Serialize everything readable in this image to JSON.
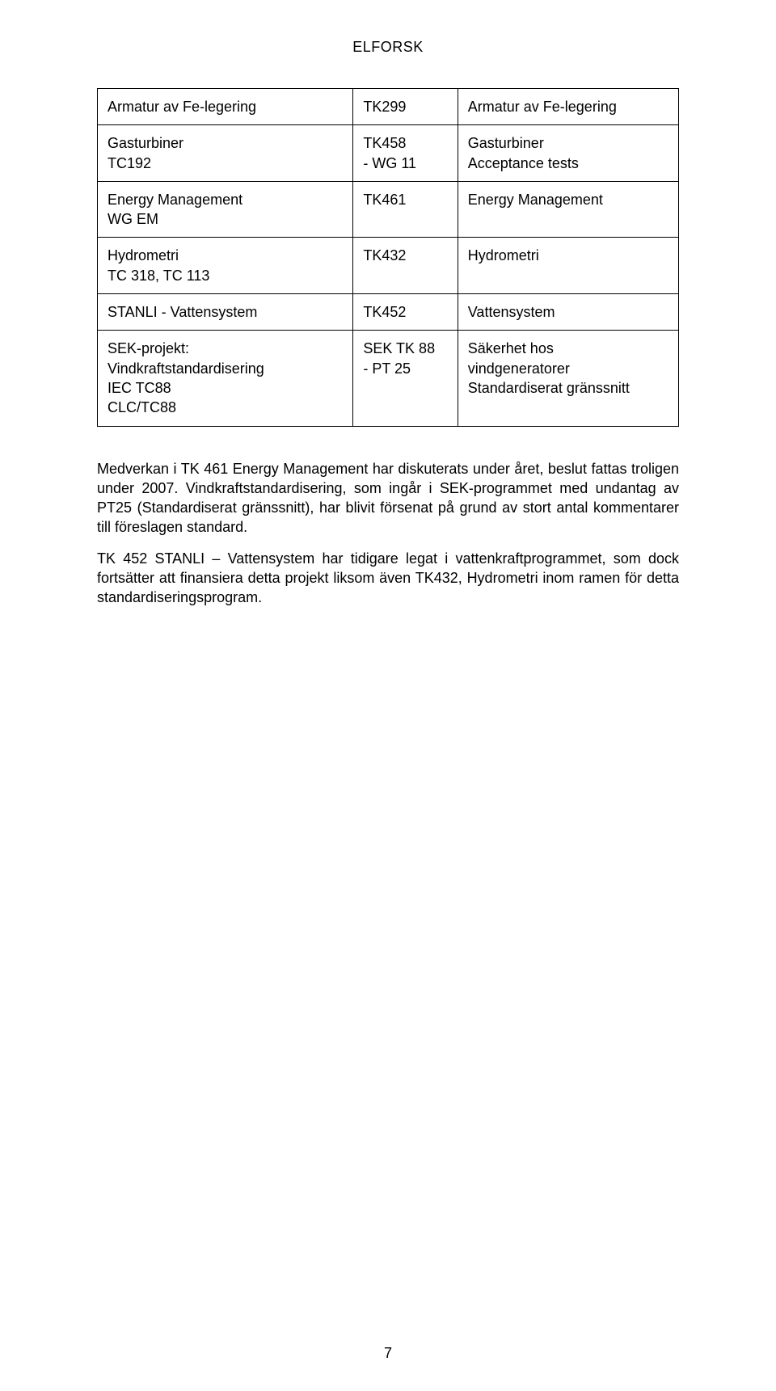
{
  "header": "ELFORSK",
  "page_number": "7",
  "table": {
    "rows": [
      {
        "c1": [
          "Armatur av Fe-legering"
        ],
        "c2": [
          "TK299"
        ],
        "c3": [
          "Armatur av Fe-legering"
        ]
      },
      {
        "c1": [
          "Gasturbiner",
          "TC192"
        ],
        "c2": [
          "TK458",
          "- WG 11"
        ],
        "c3": [
          "Gasturbiner",
          "Acceptance tests"
        ]
      },
      {
        "c1": [
          "Energy Management",
          "WG EM"
        ],
        "c2": [
          "TK461"
        ],
        "c3": [
          "Energy Management"
        ]
      },
      {
        "c1": [
          "Hydrometri",
          "TC 318, TC 113"
        ],
        "c2": [
          "TK432"
        ],
        "c3": [
          "Hydrometri"
        ]
      },
      {
        "c1": [
          "STANLI - Vattensystem"
        ],
        "c2": [
          "TK452"
        ],
        "c3": [
          "Vattensystem"
        ]
      },
      {
        "c1": [
          "SEK-projekt:",
          "Vindkraftstandardisering",
          "IEC TC88",
          "CLC/TC88"
        ],
        "c2": [
          "SEK TK 88",
          "",
          "- PT 25"
        ],
        "c3": [
          "Säkerhet hos",
          "vindgeneratorer",
          "Standardiserat gränssnitt"
        ]
      }
    ]
  },
  "paragraphs": [
    "Medverkan i TK 461 Energy Management har diskuterats under året, beslut fattas troligen under 2007. Vindkraftstandardisering, som ingår i SEK-programmet med undantag av PT25 (Standardiserat gränssnitt), har blivit försenat på grund av stort antal kommentarer till föreslagen standard.",
    "TK 452 STANLI – Vattensystem har tidigare legat i vattenkraftprogrammet, som dock fortsätter att finansiera detta projekt liksom även TK432, Hydrometri inom ramen för detta standardiseringsprogram."
  ]
}
